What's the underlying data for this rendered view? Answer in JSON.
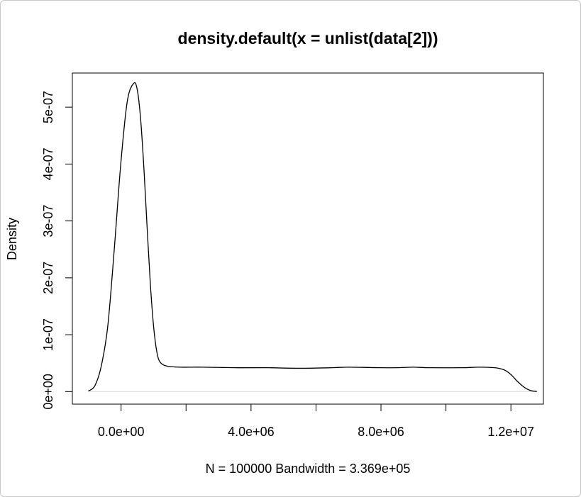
{
  "chart_data": {
    "type": "line",
    "title": "density.default(x = unlist(data[2]))",
    "xlabel": "N = 100000   Bandwidth = 3.369e+05",
    "ylabel": "Density",
    "xlim": [
      -1500000,
      13000000
    ],
    "ylim": [
      -2.2e-08,
      5.6e-07
    ],
    "x_ticks": [
      0,
      2000000,
      4000000,
      6000000,
      8000000,
      10000000,
      12000000
    ],
    "x_tick_labels": [
      "0.0e+00",
      "",
      "4.0e+06",
      "",
      "8.0e+06",
      "",
      "1.2e+07"
    ],
    "y_ticks": [
      0,
      1e-07,
      2e-07,
      3e-07,
      4e-07,
      5e-07
    ],
    "y_tick_labels": [
      "0e+00",
      "1e-07",
      "2e-07",
      "3e-07",
      "4e-07",
      "5e-07"
    ],
    "baseline": 0,
    "grid": false,
    "series": [
      {
        "color": "#000000",
        "x": [
          -1010000,
          -810000,
          -610000,
          -410000,
          -210000,
          -10000,
          190000,
          390000,
          500000,
          600000,
          700000,
          800000,
          900000,
          1000000,
          1100000,
          1200000,
          1400000,
          1800000,
          2500000,
          3500000,
          4500000,
          5500000,
          6500000,
          7000000,
          8000000,
          8500000,
          9000000,
          9500000,
          10500000,
          11000000,
          11500000,
          11800000,
          12000000,
          12200000,
          12400000,
          12600000,
          12800000
        ],
        "y": [
          1e-09,
          1e-08,
          4.5e-08,
          1.15e-07,
          2.5e-07,
          4e-07,
          5.1e-07,
          5.42e-07,
          5.3e-07,
          4.8e-07,
          3.95e-07,
          2.9e-07,
          1.9e-07,
          1.15e-07,
          7e-08,
          5.2e-08,
          4.5e-08,
          4.3e-08,
          4.3e-08,
          4.2e-08,
          4.2e-08,
          4.1e-08,
          4.2e-08,
          4.3e-08,
          4.2e-08,
          4.2e-08,
          4.3e-08,
          4.2e-08,
          4.2e-08,
          4.3e-08,
          4.2e-08,
          3.8e-08,
          3e-08,
          1.8e-08,
          8e-09,
          2e-09,
          3e-10
        ]
      }
    ]
  }
}
